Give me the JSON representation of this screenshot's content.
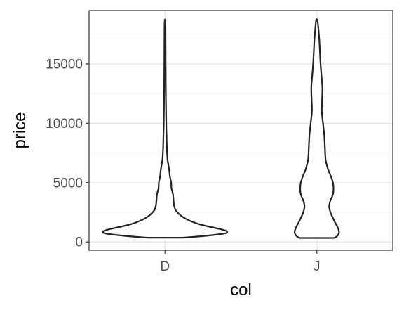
{
  "chart_data": {
    "type": "violin",
    "xlabel": "col",
    "ylabel": "price",
    "categories": [
      "D",
      "J"
    ],
    "ylim": [
      -700,
      19500
    ],
    "yticks": [
      0,
      5000,
      10000,
      15000
    ],
    "grid": true,
    "theme": "bw",
    "violins": [
      {
        "category": "D",
        "min": 357,
        "max": 18693,
        "profile": [
          [
            357,
            0.28
          ],
          [
            500,
            0.62
          ],
          [
            700,
            0.95
          ],
          [
            900,
            1.0
          ],
          [
            1100,
            0.88
          ],
          [
            1500,
            0.55
          ],
          [
            2000,
            0.32
          ],
          [
            2500,
            0.2
          ],
          [
            3000,
            0.15
          ],
          [
            4000,
            0.13
          ],
          [
            4500,
            0.105
          ],
          [
            5000,
            0.1
          ],
          [
            5500,
            0.08
          ],
          [
            6000,
            0.07
          ],
          [
            6500,
            0.055
          ],
          [
            7000,
            0.04
          ],
          [
            8000,
            0.03
          ],
          [
            9000,
            0.025
          ],
          [
            10000,
            0.02
          ],
          [
            12000,
            0.015
          ],
          [
            14000,
            0.012
          ],
          [
            16000,
            0.01
          ],
          [
            18000,
            0.008
          ],
          [
            18693,
            0.004
          ]
        ]
      },
      {
        "category": "J",
        "min": 335,
        "max": 18710,
        "profile": [
          [
            335,
            0.28
          ],
          [
            500,
            0.33
          ],
          [
            800,
            0.36
          ],
          [
            1200,
            0.34
          ],
          [
            1800,
            0.28
          ],
          [
            2500,
            0.22
          ],
          [
            3000,
            0.2
          ],
          [
            3500,
            0.22
          ],
          [
            4000,
            0.26
          ],
          [
            4500,
            0.27
          ],
          [
            5000,
            0.26
          ],
          [
            5500,
            0.23
          ],
          [
            6000,
            0.19
          ],
          [
            6500,
            0.16
          ],
          [
            7000,
            0.14
          ],
          [
            8000,
            0.13
          ],
          [
            9000,
            0.12
          ],
          [
            10000,
            0.1
          ],
          [
            11000,
            0.08
          ],
          [
            12000,
            0.085
          ],
          [
            13000,
            0.09
          ],
          [
            14000,
            0.075
          ],
          [
            15000,
            0.06
          ],
          [
            16000,
            0.05
          ],
          [
            17000,
            0.04
          ],
          [
            18000,
            0.025
          ],
          [
            18710,
            0.01
          ]
        ]
      }
    ]
  }
}
